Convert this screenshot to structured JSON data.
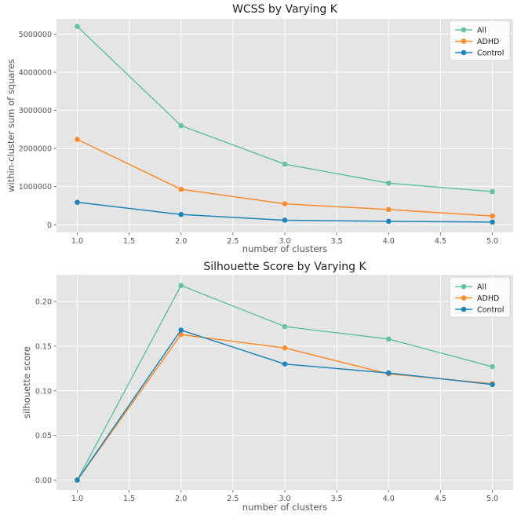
{
  "chart_data": [
    {
      "type": "line",
      "title": "WCSS by Varying K",
      "xlabel": "number of clusters",
      "ylabel": "within-cluster sum of squares",
      "x": [
        1.0,
        2.0,
        3.0,
        4.0,
        5.0
      ],
      "xlim": [
        0.8,
        5.2
      ],
      "ylim": [
        -200000,
        5400000
      ],
      "xticks": [
        1.0,
        1.5,
        2.0,
        2.5,
        3.0,
        3.5,
        4.0,
        4.5,
        5.0
      ],
      "xtick_labels": [
        "1.0",
        "1.5",
        "2.0",
        "2.5",
        "3.0",
        "3.5",
        "4.0",
        "4.5",
        "5.0"
      ],
      "yticks": [
        0,
        1000000,
        2000000,
        3000000,
        4000000,
        5000000
      ],
      "ytick_labels": [
        "0",
        "1000000",
        "2000000",
        "3000000",
        "4000000",
        "5000000"
      ],
      "grid": true,
      "legend_position": "top-right",
      "series": [
        {
          "name": "All",
          "color": "#66c2a5",
          "values": [
            5200000,
            2600000,
            1590000,
            1090000,
            870000
          ]
        },
        {
          "name": "ADHD",
          "color": "#fc8d2e",
          "values": [
            2240000,
            930000,
            550000,
            400000,
            230000
          ]
        },
        {
          "name": "Control",
          "color": "#1f85b8",
          "values": [
            590000,
            270000,
            120000,
            90000,
            70000
          ]
        }
      ]
    },
    {
      "type": "line",
      "title": "Silhouette Score by Varying K",
      "xlabel": "number of clusters",
      "ylabel": "silhouette score",
      "x": [
        1.0,
        2.0,
        3.0,
        4.0,
        5.0
      ],
      "xlim": [
        0.8,
        5.2
      ],
      "ylim": [
        -0.011,
        0.23
      ],
      "xticks": [
        1.0,
        1.5,
        2.0,
        2.5,
        3.0,
        3.5,
        4.0,
        4.5,
        5.0
      ],
      "xtick_labels": [
        "1.0",
        "1.5",
        "2.0",
        "2.5",
        "3.0",
        "3.5",
        "4.0",
        "4.5",
        "5.0"
      ],
      "yticks": [
        0.0,
        0.05,
        0.1,
        0.15,
        0.2
      ],
      "ytick_labels": [
        "0.00",
        "0.05",
        "0.10",
        "0.15",
        "0.20"
      ],
      "grid": true,
      "legend_position": "top-right",
      "series": [
        {
          "name": "All",
          "color": "#66c2a5",
          "values": [
            0.0,
            0.218,
            0.172,
            0.158,
            0.127
          ]
        },
        {
          "name": "ADHD",
          "color": "#fc8d2e",
          "values": [
            0.0,
            0.163,
            0.148,
            0.119,
            0.108
          ]
        },
        {
          "name": "Control",
          "color": "#1f85b8",
          "values": [
            0.0,
            0.168,
            0.13,
            0.12,
            0.107
          ]
        }
      ]
    }
  ]
}
